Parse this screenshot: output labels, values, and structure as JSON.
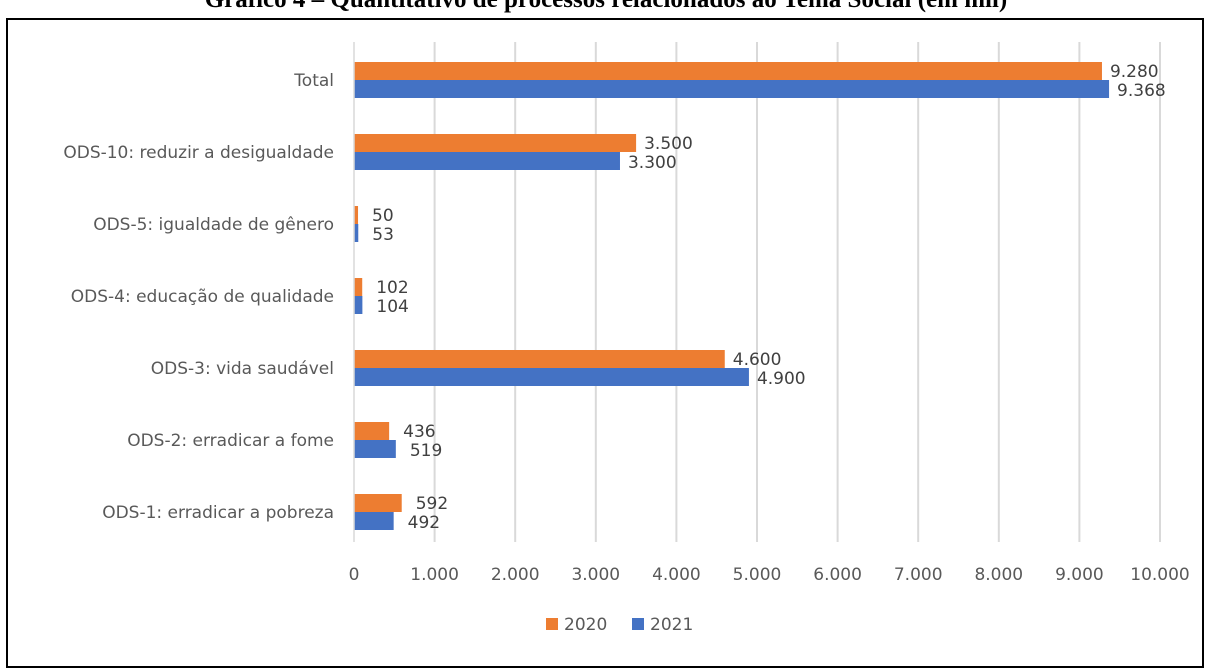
{
  "chart_data": {
    "type": "bar",
    "orientation": "horizontal",
    "title": "Gráfico 4 – Quantitativo de processos relacionados ao Tema Social (em mil)",
    "categories": [
      "Total",
      "ODS-10: reduzir a desigualdade",
      "ODS-5: igualdade de gênero",
      "ODS-4: educação de qualidade",
      "ODS-3: vida saudável",
      "ODS-2: erradicar a fome",
      "ODS-1: erradicar a pobreza"
    ],
    "series": [
      {
        "name": "2020",
        "color": "#ED7D31",
        "values": [
          9280,
          3500,
          50,
          102,
          4600,
          436,
          592
        ],
        "labels": [
          "9.280",
          "3.500",
          "50",
          "102",
          "4.600",
          "436",
          "592"
        ]
      },
      {
        "name": "2021",
        "color": "#4472C4",
        "values": [
          9368,
          3300,
          53,
          104,
          4900,
          519,
          492
        ],
        "labels": [
          "9.368",
          "3.300",
          "53",
          "104",
          "4.900",
          "519",
          "492"
        ]
      }
    ],
    "xlim": [
      0,
      10000
    ],
    "x_ticks": [
      0,
      1000,
      2000,
      3000,
      4000,
      5000,
      6000,
      7000,
      8000,
      9000,
      10000
    ],
    "x_tick_labels": [
      "0",
      "1.000",
      "2.000",
      "3.000",
      "4.000",
      "5.000",
      "6.000",
      "7.000",
      "8.000",
      "9.000",
      "10.000"
    ],
    "grid": "vertical",
    "legend_position": "bottom-center"
  }
}
